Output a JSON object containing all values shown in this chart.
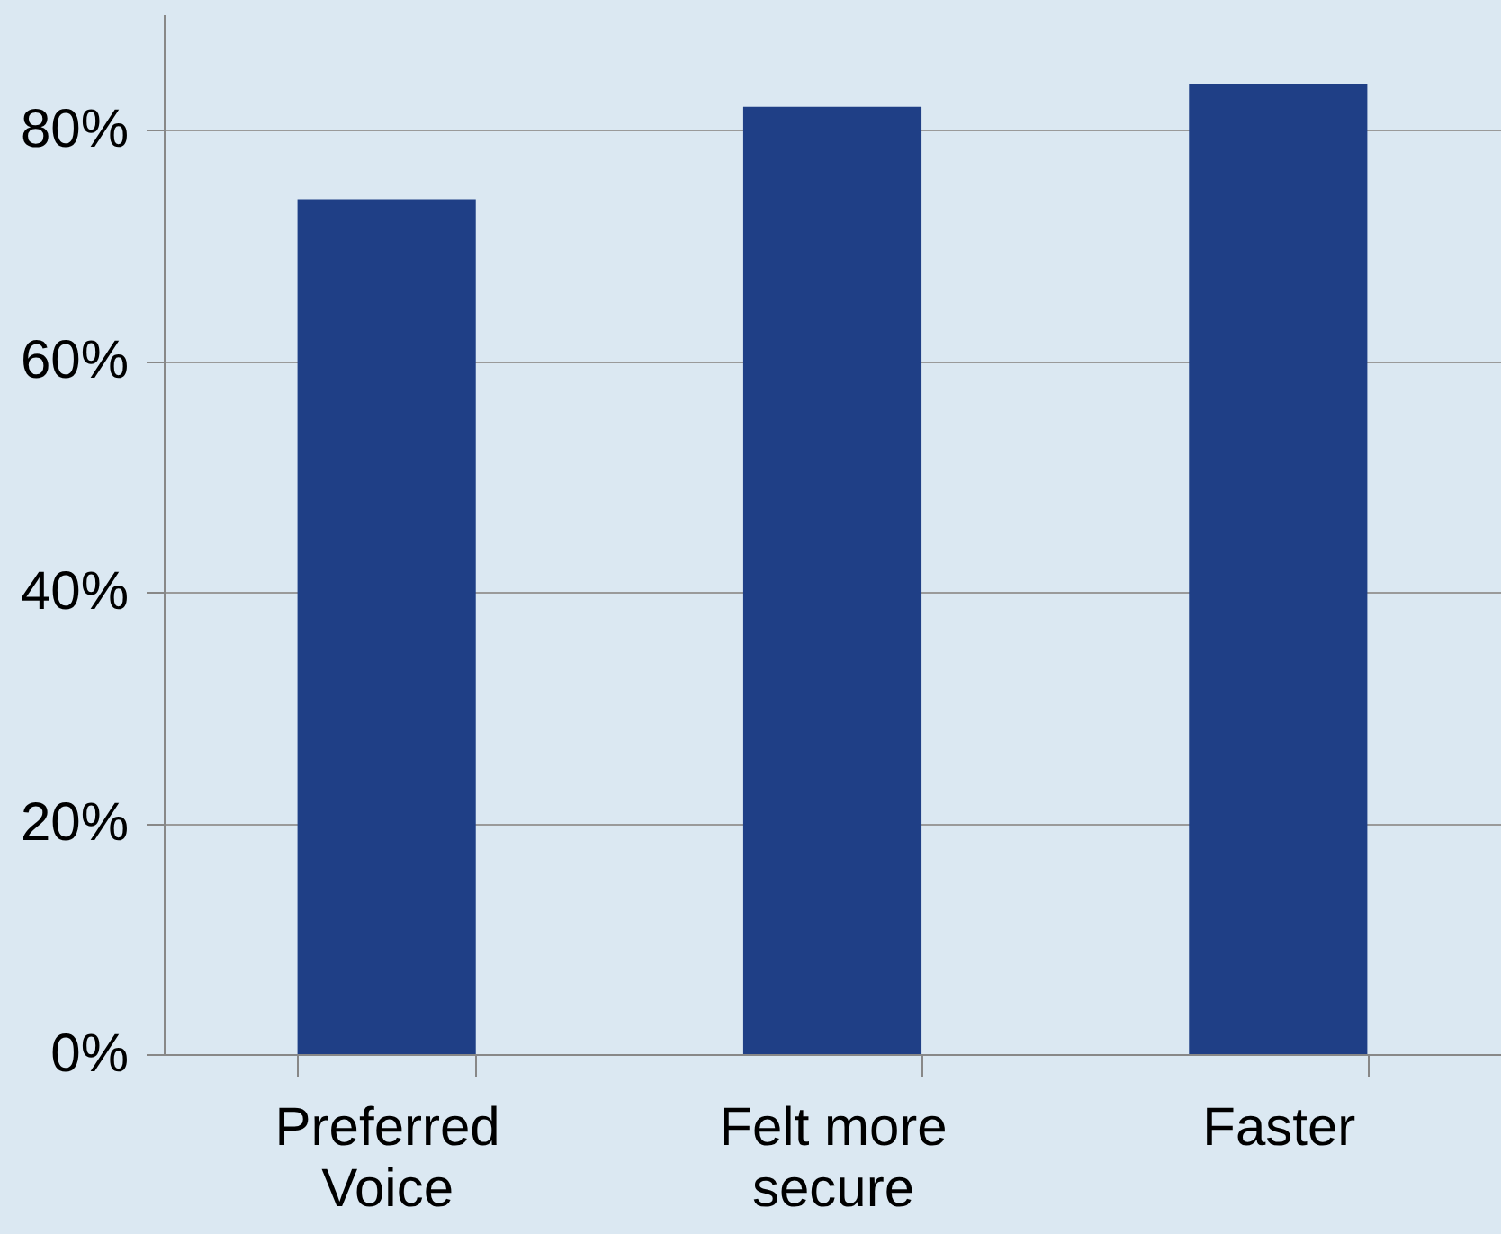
{
  "chart_data": {
    "type": "bar",
    "categories": [
      "Preferred\nVoice",
      "Felt more\nsecure",
      "Faster"
    ],
    "values": [
      74,
      82,
      84
    ],
    "color": "#1f3f86",
    "ylim": [
      0,
      90
    ],
    "yticks": [
      {
        "value": 0,
        "label": "0%"
      },
      {
        "value": 20,
        "label": "20%"
      },
      {
        "value": 40,
        "label": "40%"
      },
      {
        "value": 60,
        "label": "60%"
      },
      {
        "value": 80,
        "label": "80%"
      }
    ],
    "grid": "y"
  }
}
